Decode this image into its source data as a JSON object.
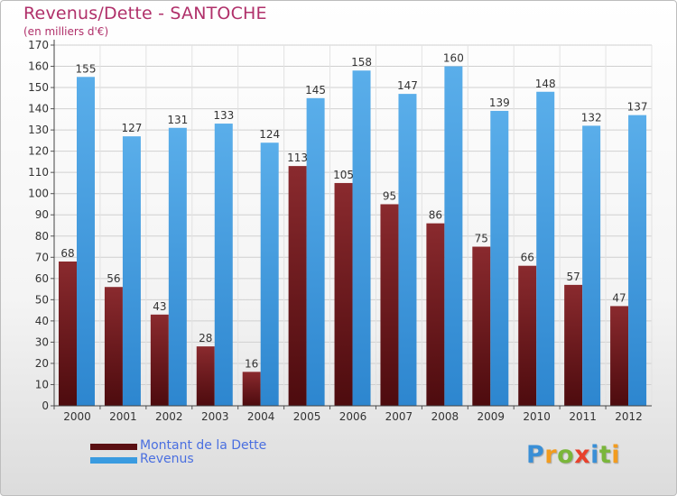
{
  "header": {
    "title": "Revenus/Dette - SANTOCHE",
    "subtitle": "(en milliers d'€)"
  },
  "legend": {
    "dette_label": "Montant de la Dette",
    "revenus_label": "Revenus"
  },
  "logo": {
    "letters": [
      "P",
      "r",
      "o",
      "x",
      "i",
      "t",
      "i"
    ],
    "colors": [
      "#3a8fd6",
      "#f29c1f",
      "#7ab63a",
      "#e8412c",
      "#3a8fd6",
      "#7ab63a",
      "#f29c1f"
    ]
  },
  "colors": {
    "dette": "#7a1e22",
    "revenus": "#3a9be0"
  },
  "chart_data": {
    "type": "bar",
    "categories": [
      "2000",
      "2001",
      "2002",
      "2003",
      "2004",
      "2005",
      "2006",
      "2007",
      "2008",
      "2009",
      "2010",
      "2011",
      "2012"
    ],
    "series": [
      {
        "name": "Montant de la Dette",
        "values": [
          68,
          56,
          43,
          28,
          16,
          113,
          105,
          95,
          86,
          75,
          66,
          57,
          47
        ]
      },
      {
        "name": "Revenus",
        "values": [
          155,
          127,
          131,
          133,
          124,
          145,
          158,
          147,
          160,
          139,
          148,
          132,
          137
        ]
      }
    ],
    "ylim": [
      0,
      170
    ],
    "ytick_step": 10,
    "grid": true,
    "legend_position": "bottom-left"
  }
}
